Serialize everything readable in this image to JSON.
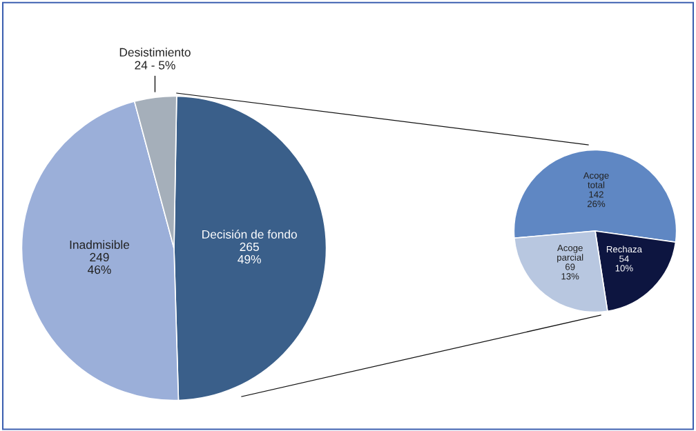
{
  "chart_data": [
    {
      "type": "pie",
      "categories": [
        "Decisión de fondo",
        "Inadmisible",
        "Desistimiento"
      ],
      "values": [
        265,
        249,
        24
      ],
      "colors": [
        "#3a5f8a",
        "#9bafd9",
        "#a5afba"
      ],
      "value_labels": [
        "265\n49%",
        "249\n46%",
        "24 - 5%"
      ]
    },
    {
      "type": "pie",
      "categories": [
        "Acoge\ntotal",
        "Rechaza",
        "Acoge\nparcial"
      ],
      "values": [
        142,
        54,
        69
      ],
      "colors": [
        "#5f87c3",
        "#0d1540",
        "#b8c7e0"
      ],
      "value_labels": [
        "142\n26%",
        "54\n10%",
        "69\n13%"
      ]
    }
  ]
}
